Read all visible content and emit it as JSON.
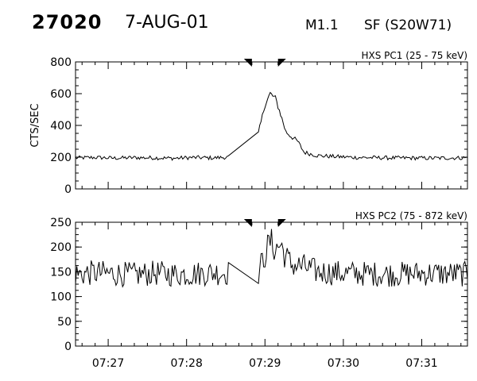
{
  "header": {
    "event_id": "27020",
    "date": "7-AUG-01",
    "goes_class": "M1.1",
    "flare_location": "SF (S20W71)"
  },
  "chart_data": [
    {
      "type": "line",
      "title": "HXS PC1 (25 - 75 keV)",
      "ylabel": "CTS/SEC",
      "xlabel": "",
      "xlim": [
        "07:26:35",
        "07:31:35"
      ],
      "ylim": [
        0,
        800
      ],
      "yticks": [
        0,
        200,
        400,
        600,
        800
      ],
      "xtick_labels": [
        "07:27",
        "07:28",
        "07:29",
        "07:30",
        "07:31"
      ],
      "markers": [
        "07:28:50",
        "07:29:10"
      ],
      "data_gap": [
        "07:28:32",
        "07:28:55"
      ],
      "series": [
        {
          "x": [
            "07:26:35",
            "07:26:50",
            "07:27:05",
            "07:27:20",
            "07:27:35",
            "07:27:50",
            "07:28:05",
            "07:28:20",
            "07:28:32",
            "07:28:55",
            "07:29:00",
            "07:29:04",
            "07:29:08",
            "07:29:12",
            "07:29:16",
            "07:29:20",
            "07:29:25",
            "07:29:30",
            "07:29:40",
            "07:29:50",
            "07:30:10",
            "07:30:40",
            "07:31:10",
            "07:31:35"
          ],
          "values": [
            195,
            198,
            194,
            197,
            196,
            193,
            198,
            195,
            200,
            350,
            530,
            600,
            570,
            470,
            360,
            330,
            300,
            230,
            210,
            205,
            198,
            195,
            194,
            196
          ]
        }
      ]
    },
    {
      "type": "line",
      "title": "HXS PC2 (75 - 872 keV)",
      "ylabel": "",
      "xlabel": "",
      "xlim": [
        "07:26:35",
        "07:31:35"
      ],
      "ylim": [
        0,
        250
      ],
      "yticks": [
        0,
        50,
        100,
        150,
        200,
        250
      ],
      "xtick_labels": [
        "07:27",
        "07:28",
        "07:29",
        "07:30",
        "07:31"
      ],
      "markers": [
        "07:28:50",
        "07:29:10"
      ],
      "data_gap": [
        "07:28:32",
        "07:28:55"
      ],
      "series": [
        {
          "x": [
            "07:26:35",
            "07:26:50",
            "07:27:05",
            "07:27:20",
            "07:27:35",
            "07:27:50",
            "07:28:05",
            "07:28:20",
            "07:28:32",
            "07:28:55",
            "07:29:00",
            "07:29:04",
            "07:29:08",
            "07:29:12",
            "07:29:16",
            "07:29:20",
            "07:29:30",
            "07:29:40",
            "07:30:00",
            "07:30:20",
            "07:30:40",
            "07:31:00",
            "07:31:20",
            "07:31:35"
          ],
          "values": [
            145,
            148,
            146,
            144,
            147,
            145,
            146,
            148,
            148,
            148,
            185,
            212,
            195,
            205,
            180,
            165,
            160,
            150,
            147,
            146,
            145,
            147,
            146,
            145
          ]
        }
      ]
    }
  ]
}
